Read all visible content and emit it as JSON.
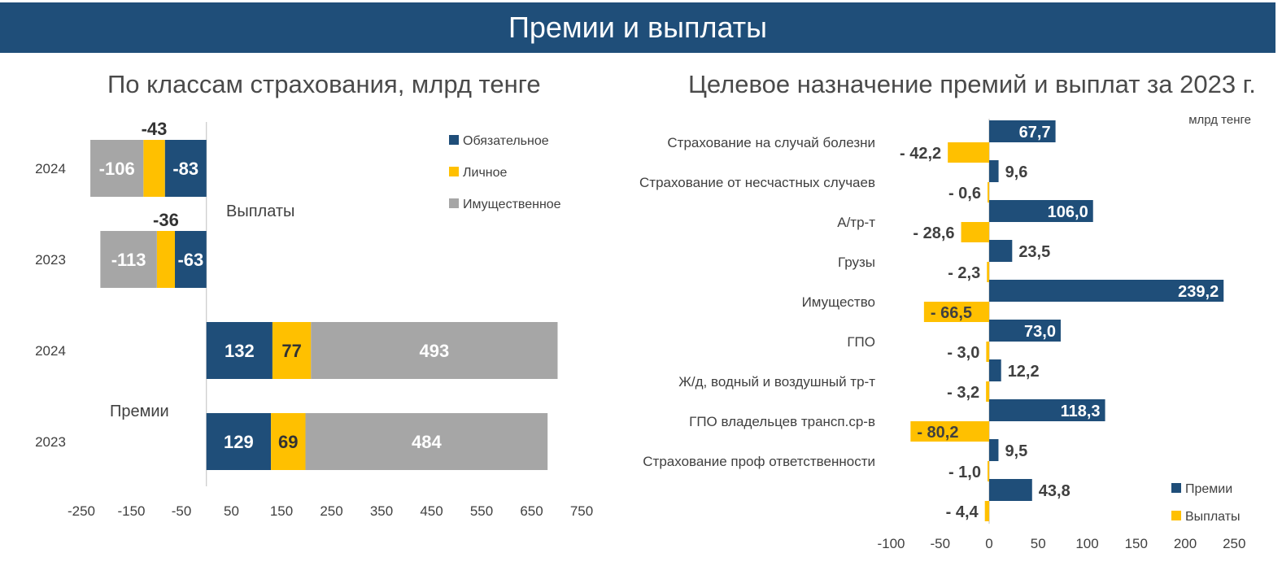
{
  "header": {
    "title": "Премии и выплаты"
  },
  "colors": {
    "banner": "#1f4e79",
    "mandatory": "#1f4e79",
    "personal": "#ffc000",
    "property": "#a6a6a6",
    "premiums": "#1f4e79",
    "payouts": "#ffc000",
    "axis": "#bfbfbf",
    "text": "#404040"
  },
  "chart_data": [
    {
      "type": "bar",
      "orientation": "horizontal",
      "stacked": true,
      "title": "По классам страхования, млрд тенге",
      "xlim": [
        -250,
        750
      ],
      "x_ticks": [
        "-250",
        "-150",
        "-50",
        "50",
        "150",
        "250",
        "350",
        "450",
        "550",
        "650",
        "750"
      ],
      "legend": [
        "Обязательное",
        "Личное",
        "Имущественное"
      ],
      "legend_position": "top-right",
      "group_labels": {
        "payouts": "Выплаты",
        "premiums": "Премии"
      },
      "rows": [
        {
          "year": "2024",
          "group": "Выплаты",
          "mandatory": -83,
          "personal": -43,
          "property": -106,
          "labels": {
            "mandatory": "-83",
            "personal": "-43",
            "property": "-106"
          }
        },
        {
          "year": "2023",
          "group": "Выплаты",
          "mandatory": -63,
          "personal": -36,
          "property": -113,
          "labels": {
            "mandatory": "-63",
            "personal": "-36",
            "property": "-113"
          }
        },
        {
          "year": "2024",
          "group": "Премии",
          "mandatory": 132,
          "personal": 77,
          "property": 493,
          "labels": {
            "mandatory": "132",
            "personal": "77",
            "property": "493"
          }
        },
        {
          "year": "2023",
          "group": "Премии",
          "mandatory": 129,
          "personal": 69,
          "property": 484,
          "labels": {
            "mandatory": "129",
            "personal": "69",
            "property": "484"
          }
        }
      ]
    },
    {
      "type": "bar",
      "orientation": "horizontal",
      "title": "Целевое назначение премий и выплат за 2023 г.",
      "unit": "млрд тенге",
      "xlim": [
        -100,
        250
      ],
      "x_ticks": [
        "-100",
        "-50",
        "0",
        "50",
        "100",
        "150",
        "200",
        "250"
      ],
      "legend": [
        "Премии",
        "Выплаты"
      ],
      "legend_position": "bottom-right",
      "categories": [
        "Страхование на случай болезни",
        "Страхование от несчастных случаев",
        "А/тр-т",
        "Грузы",
        "Имущество",
        "ГПО",
        "Ж/д, водный и воздушный тр-т",
        "ГПО владельцев трансп.ср-в",
        "Страхование проф ответственности",
        ""
      ],
      "premiums": [
        67.7,
        9.6,
        106.0,
        23.5,
        239.2,
        73.0,
        12.2,
        118.3,
        9.5,
        43.8
      ],
      "payouts": [
        -42.2,
        -0.6,
        -28.6,
        -2.3,
        -66.5,
        -3.0,
        -3.2,
        -80.2,
        -1.0,
        -4.4
      ],
      "premium_labels": [
        "67,7",
        "9,6",
        "106,0",
        "23,5",
        "239,2",
        "73,0",
        "12,2",
        "118,3",
        "9,5",
        "43,8"
      ],
      "payout_labels": [
        "- 42,2",
        "- 0,6",
        "- 28,6",
        "- 2,3",
        "- 66,5",
        "- 3,0",
        "- 3,2",
        "- 80,2",
        "- 1,0",
        "- 4,4"
      ]
    }
  ]
}
